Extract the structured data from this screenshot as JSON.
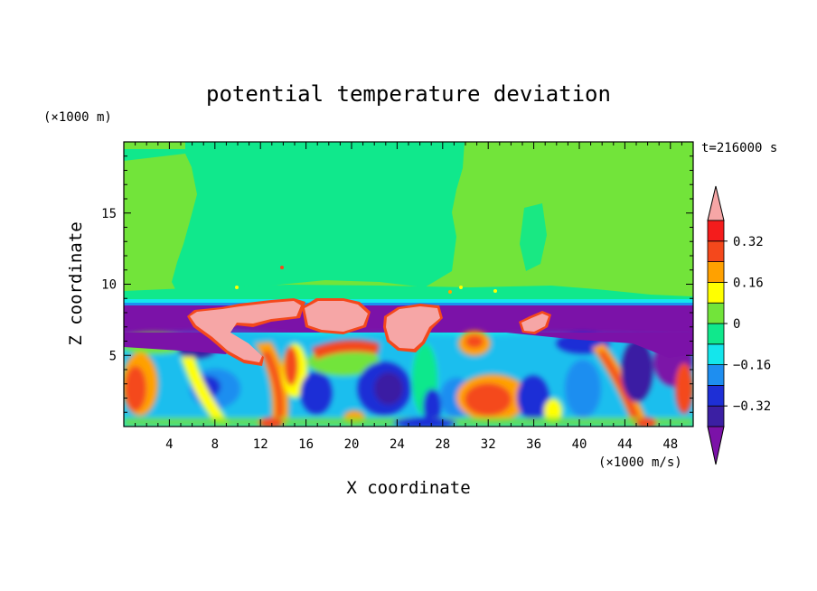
{
  "chart_data": {
    "type": "heatmap",
    "title": "potential temperature deviation",
    "xlabel": "X coordinate",
    "ylabel": "Z coordinate",
    "x_unit": "(×1000 m/s)",
    "y_unit": "(×1000 m)",
    "time_label": "t=216000 s",
    "xlim": [
      0,
      50
    ],
    "ylim": [
      0,
      20
    ],
    "x_ticks": [
      4,
      8,
      12,
      16,
      20,
      24,
      28,
      32,
      36,
      40,
      44,
      48
    ],
    "y_ticks": [
      5,
      10,
      15
    ],
    "colorbar": {
      "levels": [
        -0.4,
        -0.32,
        -0.24,
        -0.16,
        -0.08,
        0,
        0.08,
        0.16,
        0.24,
        0.32,
        0.4
      ],
      "colors": [
        "#7b12a8",
        "#3b1fa3",
        "#1e2fd6",
        "#1e8ef0",
        "#14e6ec",
        "#10e88c",
        "#72e43a",
        "#ffff00",
        "#ffa100",
        "#f4481c",
        "#f41c1c",
        "#f6a6a6"
      ],
      "tick_labels": [
        "0.32",
        "0.16",
        "0",
        "−0.16",
        "−0.32"
      ],
      "extend": "both"
    },
    "field": {
      "upper_layer_boundary_z": 8.5,
      "upper_layer_values": [
        {
          "region": "x 0-3 and 25-50, z above 11",
          "value": 0.04
        },
        {
          "region": "x 3-25, z above 11",
          "value": -0.04
        }
      ],
      "inversion_layer": {
        "z_range": [
          6.6,
          8.5
        ],
        "value": -0.4
      },
      "pink_cells": [
        {
          "x_range": [
            6,
            16
          ],
          "z_range": [
            6.6,
            8.8
          ],
          "value": 0.45
        },
        {
          "x_range": [
            16,
            23
          ],
          "z_range": [
            6.8,
            8.7
          ],
          "value": 0.45
        },
        {
          "x_range": [
            23,
            29
          ],
          "z_range": [
            5.5,
            8.5
          ],
          "value": 0.45
        },
        {
          "x_range": [
            34.5,
            37.5
          ],
          "z_range": [
            6.2,
            8.0
          ],
          "value": 0.45
        }
      ],
      "lower_layer": "turbulent mixed field, values ranging -0.4 to 0.45"
    }
  }
}
